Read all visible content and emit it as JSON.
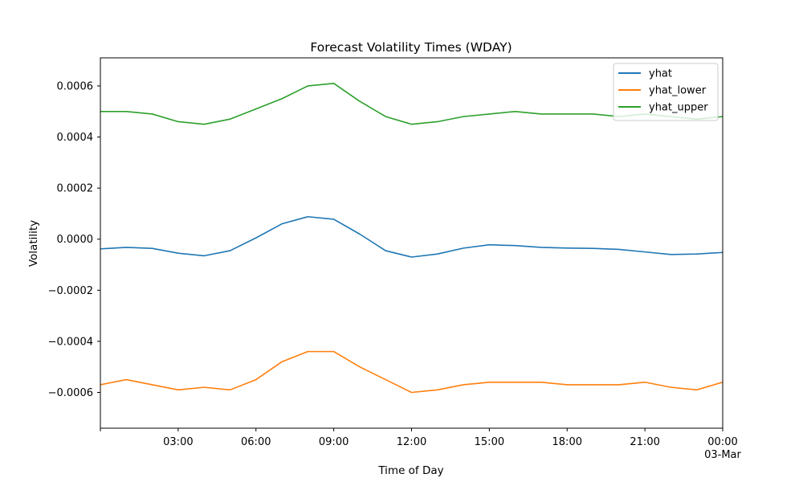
{
  "chart_data": {
    "type": "line",
    "title": "Forecast Volatility Times (WDAY)",
    "xlabel": "Time of Day",
    "ylabel": "Volatility",
    "x_unit": "hours",
    "xlim": [
      0,
      24
    ],
    "ylim": [
      -0.00074,
      0.00071
    ],
    "x_ticks": [
      {
        "value": 3,
        "label": "03:00",
        "sublabel": ""
      },
      {
        "value": 6,
        "label": "06:00",
        "sublabel": ""
      },
      {
        "value": 9,
        "label": "09:00",
        "sublabel": ""
      },
      {
        "value": 12,
        "label": "12:00",
        "sublabel": ""
      },
      {
        "value": 15,
        "label": "15:00",
        "sublabel": ""
      },
      {
        "value": 18,
        "label": "18:00",
        "sublabel": ""
      },
      {
        "value": 21,
        "label": "21:00",
        "sublabel": ""
      },
      {
        "value": 24,
        "label": "00:00",
        "sublabel": "03-Mar"
      }
    ],
    "y_ticks": [
      {
        "value": 0.0006,
        "label": "0.0006"
      },
      {
        "value": 0.0004,
        "label": "0.0004"
      },
      {
        "value": 0.0002,
        "label": "0.0002"
      },
      {
        "value": 0.0,
        "label": "0.0000"
      },
      {
        "value": -0.0002,
        "label": "−0.0002"
      },
      {
        "value": -0.0004,
        "label": "−0.0004"
      },
      {
        "value": -0.0006,
        "label": "−0.0006"
      }
    ],
    "grid": false,
    "legend_position": "top-right",
    "series": [
      {
        "name": "yhat",
        "color": "#1f77b4",
        "x": [
          0,
          1,
          2,
          3,
          4,
          5,
          6,
          7,
          8,
          9,
          10,
          11,
          12,
          13,
          14,
          15,
          16,
          17,
          18,
          19,
          20,
          21,
          22,
          23,
          24
        ],
        "y": [
          -3.8e-05,
          -3.2e-05,
          -3.6e-05,
          -5.5e-05,
          -6.5e-05,
          -4.5e-05,
          5e-06,
          6e-05,
          8.8e-05,
          7.8e-05,
          2e-05,
          -4.5e-05,
          -7e-05,
          -5.8e-05,
          -3.5e-05,
          -2.2e-05,
          -2.5e-05,
          -3.2e-05,
          -3.5e-05,
          -3.6e-05,
          -4e-05,
          -5e-05,
          -6e-05,
          -5.8e-05,
          -5.2e-05
        ]
      },
      {
        "name": "yhat_lower",
        "color": "#ff7f0e",
        "x": [
          0,
          1,
          2,
          3,
          4,
          5,
          6,
          7,
          8,
          9,
          10,
          11,
          12,
          13,
          14,
          15,
          16,
          17,
          18,
          19,
          20,
          21,
          22,
          23,
          24
        ],
        "y": [
          -0.00057,
          -0.00055,
          -0.00057,
          -0.00059,
          -0.00058,
          -0.00059,
          -0.00055,
          -0.00048,
          -0.00044,
          -0.00044,
          -0.0005,
          -0.00055,
          -0.0006,
          -0.00059,
          -0.00057,
          -0.00056,
          -0.00056,
          -0.00056,
          -0.00057,
          -0.00057,
          -0.00057,
          -0.00056,
          -0.00058,
          -0.00059,
          -0.00056
        ]
      },
      {
        "name": "yhat_upper",
        "color": "#2ca02c",
        "x": [
          0,
          1,
          2,
          3,
          4,
          5,
          6,
          7,
          8,
          9,
          10,
          11,
          12,
          13,
          14,
          15,
          16,
          17,
          18,
          19,
          20,
          21,
          22,
          23,
          24
        ],
        "y": [
          0.0005,
          0.0005,
          0.00049,
          0.00046,
          0.00045,
          0.00047,
          0.00051,
          0.00055,
          0.0006,
          0.00061,
          0.00054,
          0.00048,
          0.00045,
          0.00046,
          0.00048,
          0.00049,
          0.0005,
          0.00049,
          0.00049,
          0.00049,
          0.00048,
          0.00049,
          0.00048,
          0.00047,
          0.00048
        ]
      }
    ]
  }
}
